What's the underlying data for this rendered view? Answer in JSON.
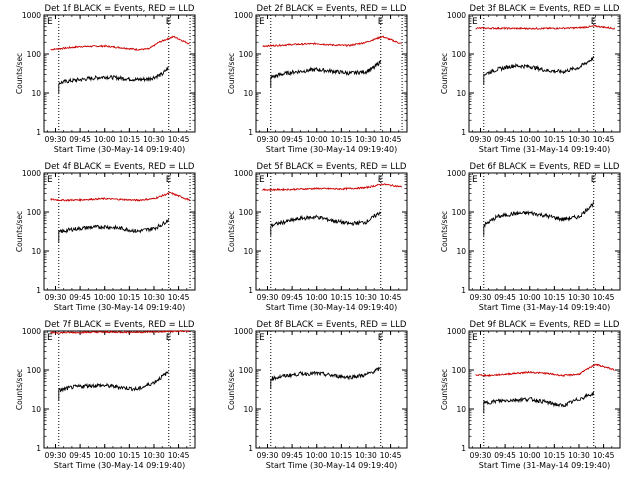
{
  "chart_data": [
    {
      "type": "line",
      "title": "Det 1f BLACK = Events, RED = LLD",
      "ylabel": "Counts/sec",
      "xlabel": "Start Time (30-May-14 09:19:40)",
      "yscale": "log",
      "ylim": [
        1,
        1000
      ],
      "xlim": [
        "09:23",
        "10:55"
      ],
      "x_ticks": [
        "09:30",
        "09:45",
        "10:00",
        "10:15",
        "10:30",
        "10:45"
      ],
      "y_ticks": [
        "1",
        "10",
        "100",
        "1000"
      ],
      "vlines": [
        "09:32",
        "10:39",
        "10:52"
      ],
      "markers": [
        "E",
        "E"
      ],
      "series": [
        {
          "color": "#cc0000",
          "x": [
            "09:27",
            "09:35",
            "09:45",
            "10:00",
            "10:10",
            "10:20",
            "10:27",
            "10:33",
            "10:42",
            "10:52"
          ],
          "y": [
            130,
            140,
            155,
            160,
            145,
            130,
            135,
            200,
            280,
            180
          ]
        },
        {
          "color": "#000000",
          "x": [
            "09:32",
            "09:37",
            "09:45",
            "10:00",
            "10:10",
            "10:20",
            "10:27",
            "10:35",
            "10:39"
          ],
          "y": [
            18,
            20,
            22,
            26,
            24,
            22,
            23,
            30,
            45
          ]
        }
      ]
    },
    {
      "type": "line",
      "title": "Det 2f BLACK = Events, RED = LLD",
      "ylabel": "Counts/sec",
      "xlabel": "Start Time (30-May-14 09:19:40)",
      "yscale": "log",
      "ylim": [
        1,
        1000
      ],
      "xlim": [
        "09:23",
        "10:55"
      ],
      "x_ticks": [
        "09:30",
        "09:45",
        "10:00",
        "10:15",
        "10:30",
        "10:45"
      ],
      "y_ticks": [
        "1",
        "10",
        "100",
        "1000"
      ],
      "vlines": [
        "09:32",
        "10:39",
        "10:52"
      ],
      "markers": [
        "E",
        "E"
      ],
      "series": [
        {
          "color": "#cc0000",
          "x": [
            "09:27",
            "09:35",
            "09:45",
            "10:00",
            "10:10",
            "10:20",
            "10:30",
            "10:40",
            "10:52"
          ],
          "y": [
            160,
            165,
            175,
            185,
            170,
            165,
            200,
            280,
            180
          ]
        },
        {
          "color": "#000000",
          "x": [
            "09:32",
            "09:38",
            "09:45",
            "10:00",
            "10:10",
            "10:20",
            "10:30",
            "10:35",
            "10:39"
          ],
          "y": [
            25,
            30,
            34,
            40,
            36,
            32,
            35,
            45,
            65
          ]
        }
      ]
    },
    {
      "type": "line",
      "title": "Det 3f BLACK = Events, RED = LLD",
      "ylabel": "Counts/sec",
      "xlabel": "Start Time (31-May-14 09:19:40)",
      "yscale": "log",
      "ylim": [
        1,
        1000
      ],
      "xlim": [
        "09:23",
        "10:55"
      ],
      "x_ticks": [
        "09:30",
        "09:45",
        "10:00",
        "10:15",
        "10:30",
        "10:45"
      ],
      "y_ticks": [
        "1",
        "10",
        "100",
        "1000"
      ],
      "vlines": [
        "09:32",
        "10:39"
      ],
      "markers": [
        "E",
        "E"
      ],
      "series": [
        {
          "color": "#cc0000",
          "x": [
            "09:27",
            "09:45",
            "10:00",
            "10:15",
            "10:30",
            "10:40",
            "10:52"
          ],
          "y": [
            460,
            455,
            450,
            455,
            470,
            520,
            450
          ]
        },
        {
          "color": "#000000",
          "x": [
            "09:32",
            "09:40",
            "09:50",
            "10:00",
            "10:10",
            "10:20",
            "10:30",
            "10:39"
          ],
          "y": [
            30,
            40,
            50,
            48,
            38,
            35,
            45,
            80
          ]
        }
      ]
    },
    {
      "type": "line",
      "title": "Det 4f BLACK = Events, RED = LLD",
      "ylabel": "Counts/sec",
      "xlabel": "Start Time (30-May-14 09:19:40)",
      "yscale": "log",
      "ylim": [
        1,
        1000
      ],
      "xlim": [
        "09:23",
        "10:55"
      ],
      "x_ticks": [
        "09:30",
        "09:45",
        "10:00",
        "10:15",
        "10:30",
        "10:45"
      ],
      "y_ticks": [
        "1",
        "10",
        "100",
        "1000"
      ],
      "vlines": [
        "09:32",
        "10:39",
        "10:52"
      ],
      "markers": [
        "E",
        "E"
      ],
      "series": [
        {
          "color": "#cc0000",
          "x": [
            "09:27",
            "09:35",
            "09:45",
            "10:00",
            "10:10",
            "10:20",
            "10:30",
            "10:40",
            "10:52"
          ],
          "y": [
            210,
            200,
            205,
            220,
            210,
            200,
            220,
            310,
            200
          ]
        },
        {
          "color": "#000000",
          "x": [
            "09:32",
            "09:40",
            "09:50",
            "10:00",
            "10:10",
            "10:20",
            "10:30",
            "10:35",
            "10:39"
          ],
          "y": [
            30,
            36,
            40,
            42,
            38,
            32,
            38,
            48,
            65
          ]
        }
      ]
    },
    {
      "type": "line",
      "title": "Det 5f BLACK = Events, RED = LLD",
      "ylabel": "Counts/sec",
      "xlabel": "Start Time (30-May-14 09:19:40)",
      "yscale": "log",
      "ylim": [
        1,
        1000
      ],
      "xlim": [
        "09:23",
        "10:55"
      ],
      "x_ticks": [
        "09:30",
        "09:45",
        "10:00",
        "10:15",
        "10:30",
        "10:45"
      ],
      "y_ticks": [
        "1",
        "10",
        "100",
        "1000"
      ],
      "vlines": [
        "09:32",
        "10:39"
      ],
      "markers": [
        "E",
        "E"
      ],
      "series": [
        {
          "color": "#cc0000",
          "x": [
            "09:27",
            "09:45",
            "10:00",
            "10:15",
            "10:30",
            "10:40",
            "10:52"
          ],
          "y": [
            370,
            380,
            400,
            390,
            420,
            520,
            440
          ]
        },
        {
          "color": "#000000",
          "x": [
            "09:32",
            "09:40",
            "09:50",
            "10:00",
            "10:10",
            "10:20",
            "10:30",
            "10:39"
          ],
          "y": [
            45,
            55,
            68,
            75,
            60,
            50,
            55,
            100
          ]
        }
      ]
    },
    {
      "type": "line",
      "title": "Det 6f BLACK = Events, RED = LLD",
      "ylabel": "Counts/sec",
      "xlabel": "Start Time (31-May-14 09:19:40)",
      "yscale": "log",
      "ylim": [
        1,
        1000
      ],
      "xlim": [
        "09:23",
        "10:55"
      ],
      "x_ticks": [
        "09:30",
        "09:45",
        "10:00",
        "10:15",
        "10:30",
        "10:45"
      ],
      "y_ticks": [
        "1",
        "10",
        "100",
        "1000"
      ],
      "vlines": [
        "09:32",
        "10:39"
      ],
      "markers": [
        "E",
        "E"
      ],
      "series": [
        {
          "color": "#000000",
          "x": [
            "09:32",
            "09:40",
            "09:50",
            "10:00",
            "10:10",
            "10:20",
            "10:30",
            "10:39"
          ],
          "y": [
            45,
            75,
            90,
            95,
            80,
            65,
            75,
            170
          ]
        }
      ]
    },
    {
      "type": "line",
      "title": "Det 7f BLACK = Events, RED = LLD",
      "ylabel": "Counts/sec",
      "xlabel": "Start Time (30-May-14 09:19:40)",
      "yscale": "log",
      "ylim": [
        1,
        1000
      ],
      "xlim": [
        "09:23",
        "10:55"
      ],
      "x_ticks": [
        "09:30",
        "09:45",
        "10:00",
        "10:15",
        "10:30",
        "10:45"
      ],
      "y_ticks": [
        "1",
        "10",
        "100",
        "1000"
      ],
      "vlines": [
        "09:32",
        "10:39",
        "10:52"
      ],
      "markers": [
        "E",
        "E"
      ],
      "series": [
        {
          "color": "#cc0000",
          "x": [
            "09:27",
            "09:45",
            "10:00",
            "10:15",
            "10:30",
            "10:45",
            "10:52"
          ],
          "y": [
            900,
            920,
            940,
            930,
            950,
            980,
            1000
          ]
        },
        {
          "color": "#000000",
          "x": [
            "09:32",
            "09:40",
            "09:50",
            "10:00",
            "10:10",
            "10:20",
            "10:30",
            "10:39"
          ],
          "y": [
            30,
            36,
            40,
            40,
            36,
            32,
            48,
            90
          ]
        }
      ]
    },
    {
      "type": "line",
      "title": "Det 8f BLACK = Events, RED = LLD",
      "ylabel": "Counts/sec",
      "xlabel": "Start Time (30-May-14 09:19:40)",
      "yscale": "log",
      "ylim": [
        1,
        1000
      ],
      "xlim": [
        "09:23",
        "10:55"
      ],
      "x_ticks": [
        "09:30",
        "09:45",
        "10:00",
        "10:15",
        "10:30",
        "10:45"
      ],
      "y_ticks": [
        "1",
        "10",
        "100",
        "1000"
      ],
      "vlines": [
        "09:32",
        "10:39"
      ],
      "markers": [
        "E",
        "E"
      ],
      "series": [
        {
          "color": "#000000",
          "x": [
            "09:32",
            "09:40",
            "09:50",
            "10:00",
            "10:10",
            "10:20",
            "10:30",
            "10:39"
          ],
          "y": [
            60,
            70,
            80,
            82,
            72,
            65,
            75,
            110
          ]
        }
      ]
    },
    {
      "type": "line",
      "title": "Det 9f BLACK = Events, RED = LLD",
      "ylabel": "Counts/sec",
      "xlabel": "Start Time (31-May-14 09:19:40)",
      "yscale": "log",
      "ylim": [
        1,
        1000
      ],
      "xlim": [
        "09:23",
        "10:55"
      ],
      "x_ticks": [
        "09:30",
        "09:45",
        "10:00",
        "10:15",
        "10:30",
        "10:45"
      ],
      "y_ticks": [
        "1",
        "10",
        "100",
        "1000"
      ],
      "vlines": [
        "09:32",
        "10:39"
      ],
      "markers": [
        "E"
      ],
      "series": [
        {
          "color": "#cc0000",
          "x": [
            "09:27",
            "09:35",
            "09:45",
            "10:00",
            "10:10",
            "10:20",
            "10:30",
            "10:40",
            "10:52"
          ],
          "y": [
            75,
            72,
            78,
            88,
            82,
            72,
            78,
            140,
            100
          ]
        },
        {
          "color": "#000000",
          "x": [
            "09:32",
            "09:40",
            "09:50",
            "10:00",
            "10:10",
            "10:20",
            "10:30",
            "10:39"
          ],
          "y": [
            14,
            16,
            17,
            18,
            15,
            12,
            18,
            25
          ]
        }
      ]
    }
  ]
}
